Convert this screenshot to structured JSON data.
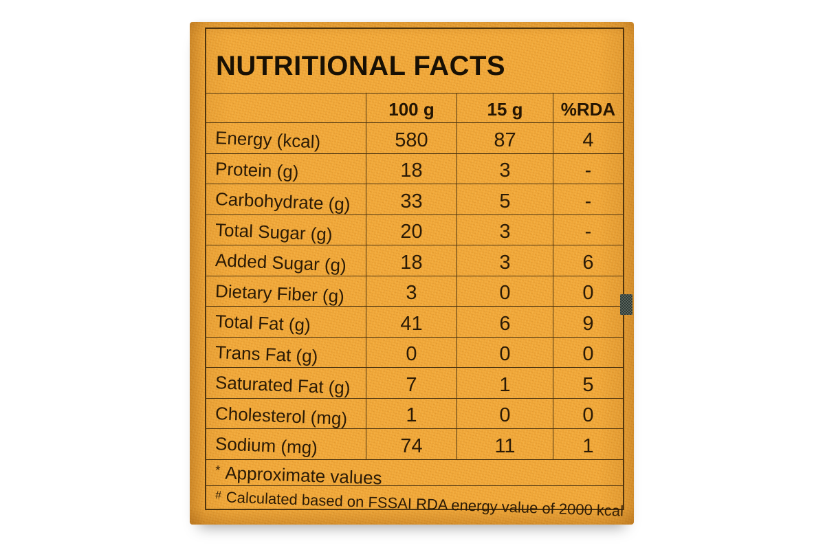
{
  "label": {
    "title": "NUTRITIONAL FACTS",
    "columns": [
      "100 g",
      "15 g",
      "%RDA"
    ],
    "rows": [
      {
        "label": "Energy (kcal)",
        "per_100g": "580",
        "per_15g": "87",
        "rda": "4"
      },
      {
        "label": "Protein (g)",
        "per_100g": "18",
        "per_15g": "3",
        "rda": "-"
      },
      {
        "label": "Carbohydrate (g)",
        "per_100g": "33",
        "per_15g": "5",
        "rda": "-"
      },
      {
        "label": "Total Sugar (g)",
        "per_100g": "20",
        "per_15g": "3",
        "rda": "-"
      },
      {
        "label": "Added Sugar (g)",
        "per_100g": "18",
        "per_15g": "3",
        "rda": "6"
      },
      {
        "label": "Dietary Fiber (g)",
        "per_100g": "3",
        "per_15g": "0",
        "rda": "0"
      },
      {
        "label": "Total Fat (g)",
        "per_100g": "41",
        "per_15g": "6",
        "rda": "9"
      },
      {
        "label": "Trans Fat (g)",
        "per_100g": "0",
        "per_15g": "0",
        "rda": "0"
      },
      {
        "label": "Saturated Fat (g)",
        "per_100g": "7",
        "per_15g": "1",
        "rda": "5"
      },
      {
        "label": "Cholesterol (mg)",
        "per_100g": "1",
        "per_15g": "0",
        "rda": "0"
      },
      {
        "label": "Sodium (mg)",
        "per_100g": "74",
        "per_15g": "11",
        "rda": "1"
      }
    ],
    "footnotes": [
      {
        "marker": "*",
        "text": "Approximate values"
      },
      {
        "marker": "#",
        "text": "Calculated based on FSSAI RDA energy value of 2000 kcal"
      }
    ]
  },
  "colors": {
    "background": "#ffffff",
    "label": "#f2a93b",
    "grid_line": "#4a3310",
    "text": "#2a1a06",
    "edge_mark": "#3d4743"
  }
}
